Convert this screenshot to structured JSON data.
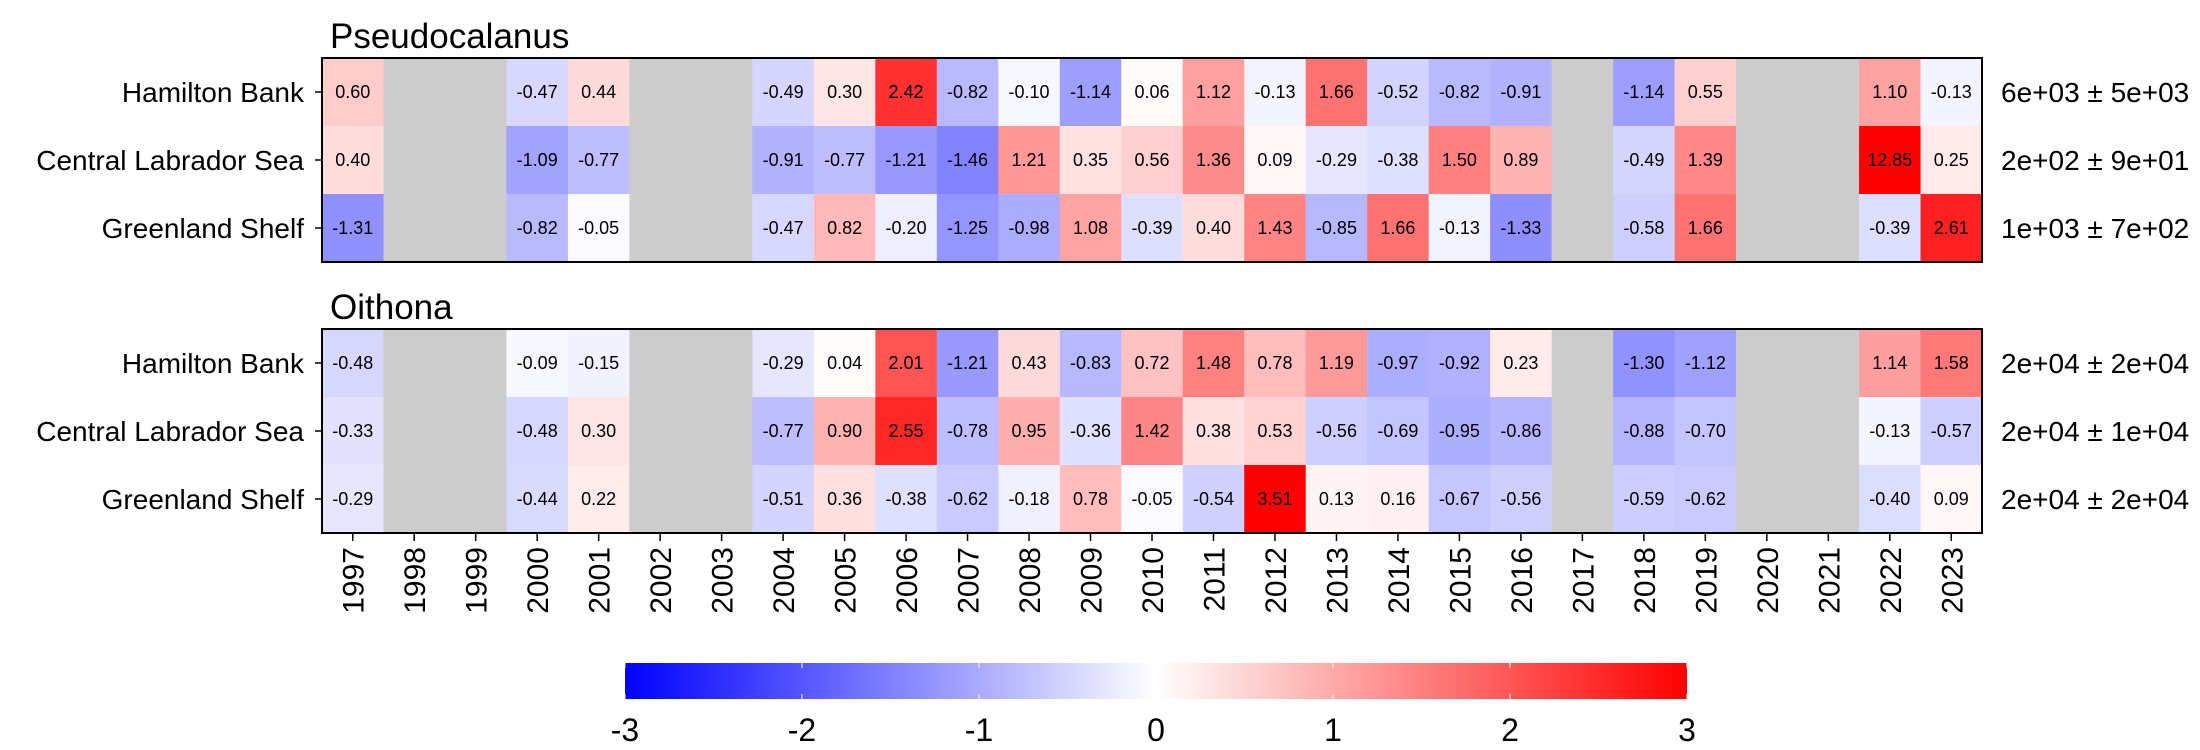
{
  "chart_data": [
    {
      "type": "heatmap",
      "title": "Pseudocalanus",
      "x": [
        "1997",
        "1998",
        "1999",
        "2000",
        "2001",
        "2002",
        "2003",
        "2004",
        "2005",
        "2006",
        "2007",
        "2008",
        "2009",
        "2010",
        "2011",
        "2012",
        "2013",
        "2014",
        "2015",
        "2016",
        "2017",
        "2018",
        "2019",
        "2020",
        "2021",
        "2022",
        "2023"
      ],
      "y": [
        "Hamilton Bank",
        "Central Labrador Sea",
        "Greenland Shelf"
      ],
      "values": [
        [
          "0.60",
          null,
          null,
          "-0.47",
          "0.44",
          null,
          null,
          "-0.49",
          "0.30",
          "2.42",
          "-0.82",
          "-0.10",
          "-1.14",
          "0.06",
          "1.12",
          "-0.13",
          "1.66",
          "-0.52",
          "-0.82",
          "-0.91",
          null,
          "-1.14",
          "0.55",
          null,
          null,
          "1.10",
          "-0.13"
        ],
        [
          "0.40",
          null,
          null,
          "-1.09",
          "-0.77",
          null,
          null,
          "-0.91",
          "-0.77",
          "-1.21",
          "-1.46",
          "1.21",
          "0.35",
          "0.56",
          "1.36",
          "0.09",
          "-0.29",
          "-0.38",
          "1.50",
          "0.89",
          null,
          "-0.49",
          "1.39",
          null,
          null,
          "12.85",
          "0.25"
        ],
        [
          "-1.31",
          null,
          null,
          "-0.82",
          "-0.05",
          null,
          null,
          "-0.47",
          "0.82",
          "-0.20",
          "-1.25",
          "-0.98",
          "1.08",
          "-0.39",
          "0.40",
          "1.43",
          "-0.85",
          "1.66",
          "-0.13",
          "-1.33",
          null,
          "-0.58",
          "1.66",
          null,
          null,
          "-0.39",
          "2.61"
        ]
      ],
      "row_stats": [
        "6e+03 ± 5e+03",
        "2e+02 ± 9e+01",
        "1e+03 ± 7e+02"
      ]
    },
    {
      "type": "heatmap",
      "title": "Oithona",
      "x": [
        "1997",
        "1998",
        "1999",
        "2000",
        "2001",
        "2002",
        "2003",
        "2004",
        "2005",
        "2006",
        "2007",
        "2008",
        "2009",
        "2010",
        "2011",
        "2012",
        "2013",
        "2014",
        "2015",
        "2016",
        "2017",
        "2018",
        "2019",
        "2020",
        "2021",
        "2022",
        "2023"
      ],
      "y": [
        "Hamilton Bank",
        "Central Labrador Sea",
        "Greenland Shelf"
      ],
      "values": [
        [
          "-0.48",
          null,
          null,
          "-0.09",
          "-0.15",
          null,
          null,
          "-0.29",
          "0.04",
          "2.01",
          "-1.21",
          "0.43",
          "-0.83",
          "0.72",
          "1.48",
          "0.78",
          "1.19",
          "-0.97",
          "-0.92",
          "0.23",
          null,
          "-1.30",
          "-1.12",
          null,
          null,
          "1.14",
          "1.58"
        ],
        [
          "-0.33",
          null,
          null,
          "-0.48",
          "0.30",
          null,
          null,
          "-0.77",
          "0.90",
          "2.55",
          "-0.78",
          "0.95",
          "-0.36",
          "1.42",
          "0.38",
          "0.53",
          "-0.56",
          "-0.69",
          "-0.95",
          "-0.86",
          null,
          "-0.88",
          "-0.70",
          null,
          null,
          "-0.13",
          "-0.57"
        ],
        [
          "-0.29",
          null,
          null,
          "-0.44",
          "0.22",
          null,
          null,
          "-0.51",
          "0.36",
          "-0.38",
          "-0.62",
          "-0.18",
          "0.78",
          "-0.05",
          "-0.54",
          "3.51",
          "0.13",
          "0.16",
          "-0.67",
          "-0.56",
          null,
          "-0.59",
          "-0.62",
          null,
          null,
          "-0.40",
          "0.09"
        ]
      ],
      "row_stats": [
        "2e+04 ± 2e+04",
        "2e+04 ± 1e+04",
        "2e+04 ± 2e+04"
      ]
    }
  ],
  "colorbar": {
    "ticks": [
      "-3",
      "-2",
      "-1",
      "0",
      "1",
      "2",
      "3"
    ],
    "range": [
      -3,
      3
    ],
    "low_color": "#0000ff",
    "mid_color": "#ffffff",
    "high_color": "#ff0000"
  },
  "missing_color": "#cccccc"
}
